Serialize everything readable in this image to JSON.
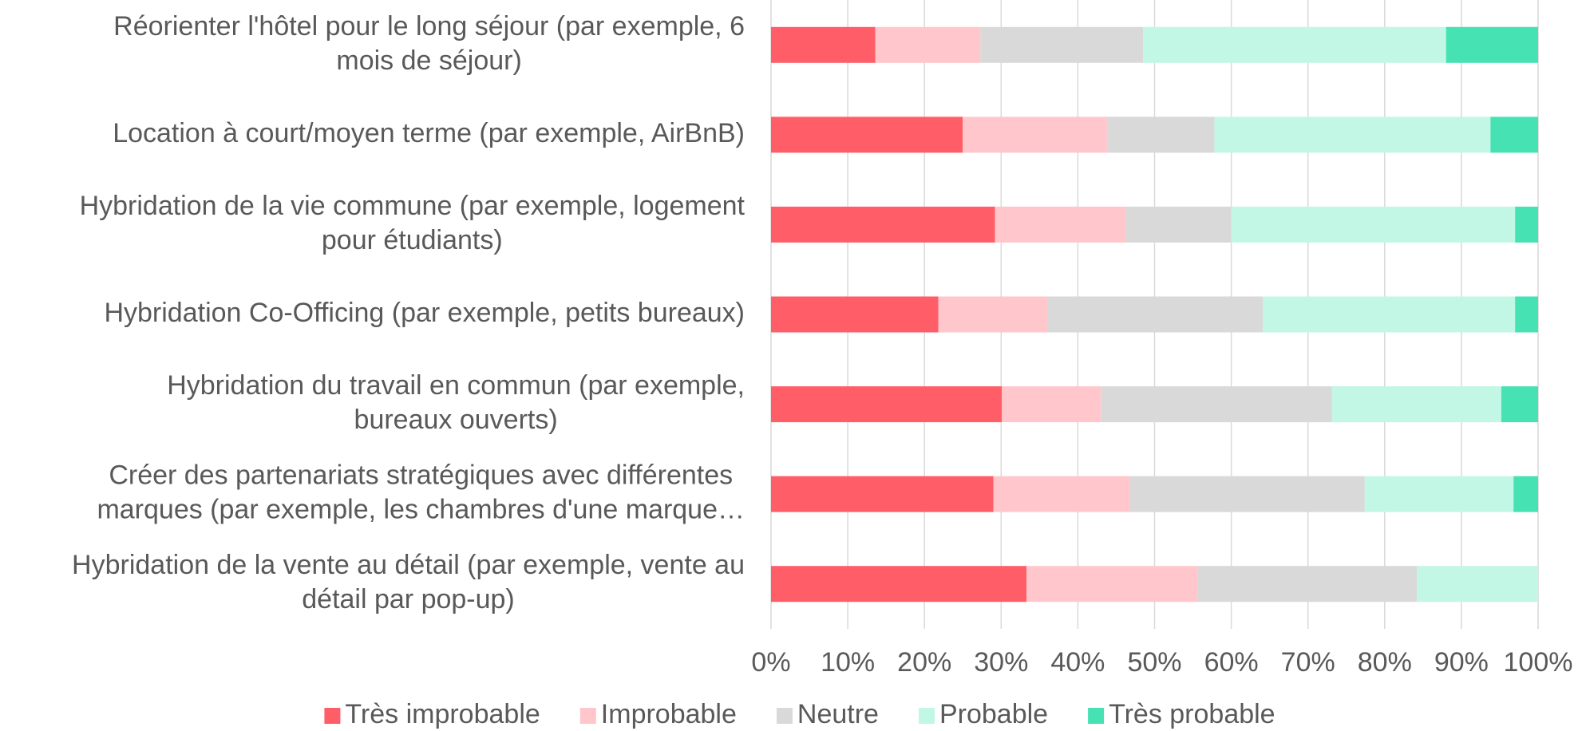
{
  "chart_data": {
    "type": "stacked_bar_horizontal",
    "categories": [
      "Réorienter l'hôtel pour le long séjour (par exemple, 6\nmois de séjour)",
      "Location à court/moyen terme (par exemple, AirBnB)",
      "Hybridation de la vie commune (par exemple, logement\npour étudiants)",
      "Hybridation Co-Officing (par exemple, petits bureaux)",
      "Hybridation du travail en commun (par exemple,\nbureaux ouverts)",
      "Créer des partenariats stratégiques avec différentes\nmarques (par exemple, les chambres d'une marque…",
      "Hybridation de la vente au détail (par exemple, vente au\ndétail par pop-up)"
    ],
    "series": [
      {
        "name": "Très improbable",
        "color": "#ff5e69",
        "values": [
          13.6,
          25,
          29.2,
          21.8,
          30.1,
          29,
          33.3
        ]
      },
      {
        "name": "Improbable",
        "color": "#ffc7cb",
        "values": [
          13.7,
          18.8,
          17,
          14.2,
          12.9,
          17.8,
          22.3
        ]
      },
      {
        "name": "Neutre",
        "color": "#d9d9d9",
        "values": [
          21.2,
          14,
          13.8,
          28.1,
          30.1,
          30.6,
          28.6
        ]
      },
      {
        "name": "Probable",
        "color": "#c2f7e5",
        "values": [
          39.5,
          36,
          37,
          32.9,
          22.1,
          19.4,
          15.8
        ]
      },
      {
        "name": "Très probable",
        "color": "#47e2b4",
        "values": [
          12,
          6.2,
          3,
          3,
          4.8,
          3.2,
          0
        ]
      }
    ],
    "xlim": [
      0,
      100
    ],
    "xticks": [
      {
        "value": 0,
        "label": "0%"
      },
      {
        "value": 10,
        "label": "10%"
      },
      {
        "value": 20,
        "label": "20%"
      },
      {
        "value": 30,
        "label": "30%"
      },
      {
        "value": 40,
        "label": "40%"
      },
      {
        "value": 50,
        "label": "50%"
      },
      {
        "value": 60,
        "label": "60%"
      },
      {
        "value": 70,
        "label": "70%"
      },
      {
        "value": 80,
        "label": "80%"
      },
      {
        "value": 90,
        "label": "90%"
      },
      {
        "value": 100,
        "label": "100%"
      }
    ],
    "grid": true,
    "legend": "bottom"
  }
}
